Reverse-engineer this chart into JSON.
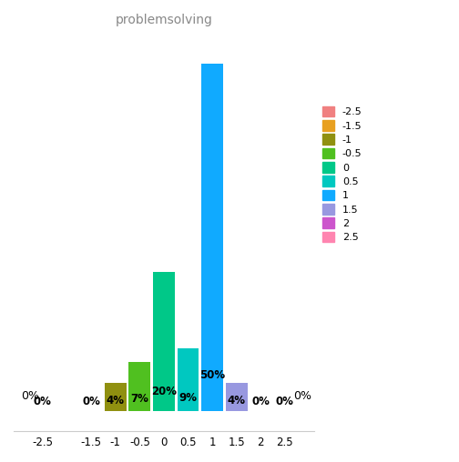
{
  "title": "problemsolving",
  "categories": [
    -2.5,
    -1.5,
    -1.0,
    -0.5,
    0.0,
    0.5,
    1.0,
    1.5,
    2.0,
    2.5
  ],
  "values": [
    0,
    0,
    4,
    7,
    20,
    9,
    50,
    4,
    0,
    0
  ],
  "bar_colors": [
    "#F08080",
    "#E8A020",
    "#909010",
    "#50C020",
    "#00C888",
    "#00C8C0",
    "#10AAFF",
    "#9898E0",
    "#CC55CC",
    "#FF85B0"
  ],
  "legend_labels": [
    "-2.5",
    "-1.5",
    "-1",
    "-0.5",
    "0",
    "0.5",
    "1",
    "1.5",
    "2",
    "2.5"
  ],
  "bar_width": 0.45,
  "xlim": [
    -3.1,
    3.1
  ],
  "ylim": [
    -3,
    55
  ],
  "xticks": [
    -2.5,
    -1.5,
    -1.0,
    -0.5,
    0.0,
    0.5,
    1.0,
    1.5,
    2.0,
    2.5
  ],
  "title_color": "#888888",
  "title_fontsize": 10,
  "label_fontsize": 8.5,
  "background_color": "#ffffff",
  "left_zero_x": -2.95,
  "right_zero_x": 2.68
}
